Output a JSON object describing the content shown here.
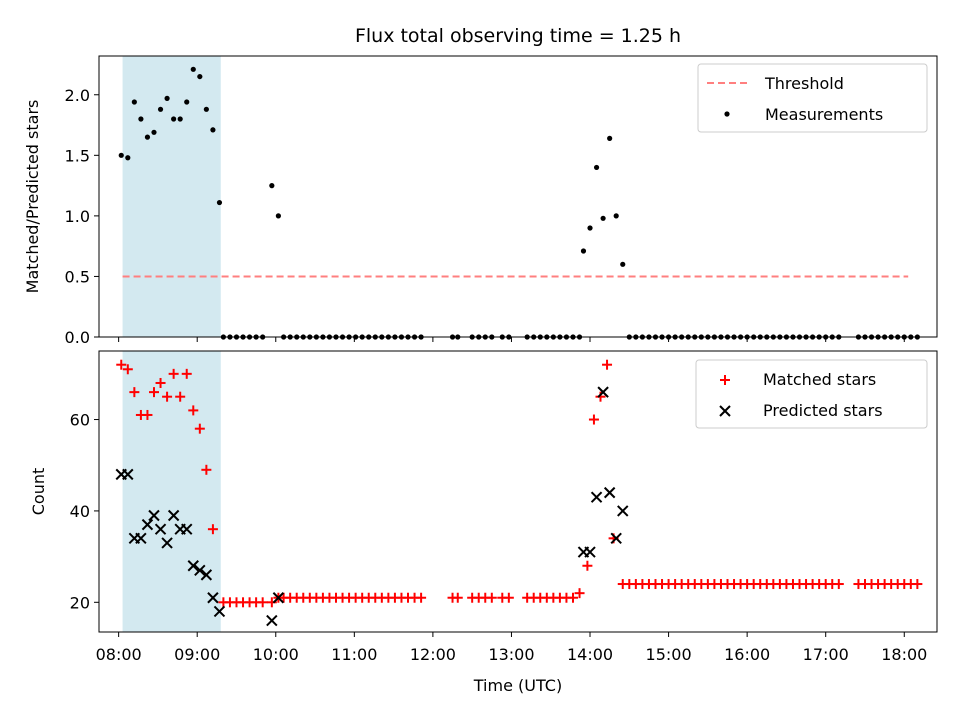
{
  "chart_data": [
    {
      "type": "scatter",
      "title": "Flux total observing time = 1.25 h",
      "ylabel": "Matched/Predicted stars",
      "xlabel": "",
      "ylim": [
        0,
        2.32
      ],
      "xlim": [
        "07:45",
        "18:25"
      ],
      "yticks": [
        0.0,
        0.5,
        1.0,
        1.5,
        2.0
      ],
      "ytick_labels": [
        "0.0",
        "0.5",
        "1.0",
        "1.5",
        "2.0"
      ],
      "threshold": {
        "name": "Threshold",
        "value": 0.5,
        "x_start": "08:03",
        "x_end": "18:03",
        "color": "#ff7f7f"
      },
      "shaded_region": {
        "x_start": "08:03",
        "x_end": "09:18",
        "color": "#d3e9f0"
      },
      "legend": {
        "location": "upper right",
        "entries": [
          "Threshold",
          "Measurements"
        ]
      },
      "series": [
        {
          "name": "Measurements",
          "color": "#000000",
          "points": [
            [
              "08:02",
              1.5
            ],
            [
              "08:07",
              1.48
            ],
            [
              "08:12",
              1.94
            ],
            [
              "08:17",
              1.8
            ],
            [
              "08:22",
              1.65
            ],
            [
              "08:27",
              1.69
            ],
            [
              "08:32",
              1.88
            ],
            [
              "08:37",
              1.97
            ],
            [
              "08:42",
              1.8
            ],
            [
              "08:47",
              1.8
            ],
            [
              "08:52",
              1.94
            ],
            [
              "08:57",
              2.21
            ],
            [
              "09:02",
              2.15
            ],
            [
              "09:07",
              1.88
            ],
            [
              "09:12",
              1.71
            ],
            [
              "09:17",
              1.11
            ],
            [
              "09:20",
              0
            ],
            [
              "09:25",
              0
            ],
            [
              "09:30",
              0
            ],
            [
              "09:35",
              0
            ],
            [
              "09:40",
              0
            ],
            [
              "09:45",
              0
            ],
            [
              "09:50",
              0
            ],
            [
              "09:57",
              1.25
            ],
            [
              "10:02",
              1.0
            ],
            [
              "10:06",
              0
            ],
            [
              "10:11",
              0
            ],
            [
              "10:16",
              0
            ],
            [
              "10:21",
              0
            ],
            [
              "10:26",
              0
            ],
            [
              "10:31",
              0
            ],
            [
              "10:36",
              0
            ],
            [
              "10:41",
              0
            ],
            [
              "10:46",
              0
            ],
            [
              "10:51",
              0
            ],
            [
              "10:56",
              0
            ],
            [
              "11:01",
              0
            ],
            [
              "11:06",
              0
            ],
            [
              "11:11",
              0
            ],
            [
              "11:16",
              0
            ],
            [
              "11:21",
              0
            ],
            [
              "11:26",
              0
            ],
            [
              "11:31",
              0
            ],
            [
              "11:36",
              0
            ],
            [
              "11:41",
              0
            ],
            [
              "11:46",
              0
            ],
            [
              "11:51",
              0
            ],
            [
              "12:15",
              0
            ],
            [
              "12:19",
              0
            ],
            [
              "12:30",
              0
            ],
            [
              "12:35",
              0
            ],
            [
              "12:40",
              0
            ],
            [
              "12:45",
              0
            ],
            [
              "12:53",
              0
            ],
            [
              "12:58",
              0
            ],
            [
              "13:12",
              0
            ],
            [
              "13:17",
              0
            ],
            [
              "13:22",
              0
            ],
            [
              "13:27",
              0
            ],
            [
              "13:32",
              0
            ],
            [
              "13:37",
              0
            ],
            [
              "13:42",
              0
            ],
            [
              "13:47",
              0
            ],
            [
              "13:52",
              0
            ],
            [
              "13:55",
              0.71
            ],
            [
              "14:00",
              0.9
            ],
            [
              "14:05",
              1.4
            ],
            [
              "14:10",
              0.98
            ],
            [
              "14:15",
              1.64
            ],
            [
              "14:20",
              1.0
            ],
            [
              "14:25",
              0.6
            ],
            [
              "14:30",
              0
            ],
            [
              "14:35",
              0
            ],
            [
              "14:40",
              0
            ],
            [
              "14:45",
              0
            ],
            [
              "14:50",
              0
            ],
            [
              "14:55",
              0
            ],
            [
              "15:00",
              0
            ],
            [
              "15:05",
              0
            ],
            [
              "15:10",
              0
            ],
            [
              "15:15",
              0
            ],
            [
              "15:20",
              0
            ],
            [
              "15:25",
              0
            ],
            [
              "15:30",
              0
            ],
            [
              "15:35",
              0
            ],
            [
              "15:40",
              0
            ],
            [
              "15:45",
              0
            ],
            [
              "15:50",
              0
            ],
            [
              "15:55",
              0
            ],
            [
              "16:00",
              0
            ],
            [
              "16:05",
              0
            ],
            [
              "16:10",
              0
            ],
            [
              "16:15",
              0
            ],
            [
              "16:20",
              0
            ],
            [
              "16:25",
              0
            ],
            [
              "16:30",
              0
            ],
            [
              "16:35",
              0
            ],
            [
              "16:40",
              0
            ],
            [
              "16:45",
              0
            ],
            [
              "16:50",
              0
            ],
            [
              "16:55",
              0
            ],
            [
              "17:00",
              0
            ],
            [
              "17:05",
              0
            ],
            [
              "17:10",
              0
            ],
            [
              "17:25",
              0
            ],
            [
              "17:30",
              0
            ],
            [
              "17:35",
              0
            ],
            [
              "17:40",
              0
            ],
            [
              "17:45",
              0
            ],
            [
              "17:50",
              0
            ],
            [
              "17:55",
              0
            ],
            [
              "18:00",
              0
            ],
            [
              "18:05",
              0
            ],
            [
              "18:10",
              0
            ]
          ]
        }
      ]
    },
    {
      "type": "scatter",
      "title": "",
      "xlabel": "Time (UTC)",
      "ylabel": "Count",
      "ylim": [
        13.5,
        75
      ],
      "xlim": [
        "07:45",
        "18:25"
      ],
      "yticks": [
        20,
        40,
        60
      ],
      "ytick_labels": [
        "20",
        "40",
        "60"
      ],
      "xticks": [
        "08:00",
        "09:00",
        "10:00",
        "11:00",
        "12:00",
        "13:00",
        "14:00",
        "15:00",
        "16:00",
        "17:00",
        "18:00"
      ],
      "xtick_labels": [
        "08:00",
        "09:00",
        "10:00",
        "11:00",
        "12:00",
        "13:00",
        "14:00",
        "15:00",
        "16:00",
        "17:00",
        "18:00"
      ],
      "shaded_region": {
        "x_start": "08:03",
        "x_end": "09:18",
        "color": "#d3e9f0"
      },
      "legend": {
        "location": "upper right",
        "entries": [
          "Matched stars",
          "Predicted stars"
        ]
      },
      "series": [
        {
          "name": "Matched stars",
          "marker": "+",
          "color": "#ff0000",
          "points": [
            [
              "08:02",
              72
            ],
            [
              "08:07",
              71
            ],
            [
              "08:12",
              66
            ],
            [
              "08:17",
              61
            ],
            [
              "08:22",
              61
            ],
            [
              "08:27",
              66
            ],
            [
              "08:32",
              68
            ],
            [
              "08:37",
              65
            ],
            [
              "08:42",
              70
            ],
            [
              "08:47",
              65
            ],
            [
              "08:52",
              70
            ],
            [
              "08:57",
              62
            ],
            [
              "09:02",
              58
            ],
            [
              "09:07",
              49
            ],
            [
              "09:12",
              36
            ],
            [
              "09:20",
              20
            ],
            [
              "09:25",
              20
            ],
            [
              "09:30",
              20
            ],
            [
              "09:35",
              20
            ],
            [
              "09:40",
              20
            ],
            [
              "09:45",
              20
            ],
            [
              "09:50",
              20
            ],
            [
              "09:57",
              20
            ],
            [
              "10:02",
              21
            ],
            [
              "10:06",
              21
            ],
            [
              "10:11",
              21
            ],
            [
              "10:16",
              21
            ],
            [
              "10:21",
              21
            ],
            [
              "10:26",
              21
            ],
            [
              "10:31",
              21
            ],
            [
              "10:36",
              21
            ],
            [
              "10:41",
              21
            ],
            [
              "10:46",
              21
            ],
            [
              "10:51",
              21
            ],
            [
              "10:56",
              21
            ],
            [
              "11:01",
              21
            ],
            [
              "11:06",
              21
            ],
            [
              "11:11",
              21
            ],
            [
              "11:16",
              21
            ],
            [
              "11:21",
              21
            ],
            [
              "11:26",
              21
            ],
            [
              "11:31",
              21
            ],
            [
              "11:36",
              21
            ],
            [
              "11:41",
              21
            ],
            [
              "11:46",
              21
            ],
            [
              "11:51",
              21
            ],
            [
              "12:15",
              21
            ],
            [
              "12:19",
              21
            ],
            [
              "12:30",
              21
            ],
            [
              "12:35",
              21
            ],
            [
              "12:40",
              21
            ],
            [
              "12:45",
              21
            ],
            [
              "12:53",
              21
            ],
            [
              "12:58",
              21
            ],
            [
              "13:12",
              21
            ],
            [
              "13:17",
              21
            ],
            [
              "13:22",
              21
            ],
            [
              "13:27",
              21
            ],
            [
              "13:32",
              21
            ],
            [
              "13:37",
              21
            ],
            [
              "13:42",
              21
            ],
            [
              "13:47",
              21
            ],
            [
              "13:52",
              22
            ],
            [
              "13:58",
              28
            ],
            [
              "14:03",
              60
            ],
            [
              "14:08",
              65
            ],
            [
              "14:13",
              72
            ],
            [
              "14:18",
              34
            ],
            [
              "14:25",
              24
            ],
            [
              "14:30",
              24
            ],
            [
              "14:35",
              24
            ],
            [
              "14:40",
              24
            ],
            [
              "14:45",
              24
            ],
            [
              "14:50",
              24
            ],
            [
              "14:55",
              24
            ],
            [
              "15:00",
              24
            ],
            [
              "15:05",
              24
            ],
            [
              "15:10",
              24
            ],
            [
              "15:15",
              24
            ],
            [
              "15:20",
              24
            ],
            [
              "15:25",
              24
            ],
            [
              "15:30",
              24
            ],
            [
              "15:35",
              24
            ],
            [
              "15:40",
              24
            ],
            [
              "15:45",
              24
            ],
            [
              "15:50",
              24
            ],
            [
              "15:55",
              24
            ],
            [
              "16:00",
              24
            ],
            [
              "16:05",
              24
            ],
            [
              "16:10",
              24
            ],
            [
              "16:15",
              24
            ],
            [
              "16:20",
              24
            ],
            [
              "16:25",
              24
            ],
            [
              "16:30",
              24
            ],
            [
              "16:35",
              24
            ],
            [
              "16:40",
              24
            ],
            [
              "16:45",
              24
            ],
            [
              "16:50",
              24
            ],
            [
              "16:55",
              24
            ],
            [
              "17:00",
              24
            ],
            [
              "17:05",
              24
            ],
            [
              "17:10",
              24
            ],
            [
              "17:25",
              24
            ],
            [
              "17:30",
              24
            ],
            [
              "17:35",
              24
            ],
            [
              "17:40",
              24
            ],
            [
              "17:45",
              24
            ],
            [
              "17:50",
              24
            ],
            [
              "17:55",
              24
            ],
            [
              "18:00",
              24
            ],
            [
              "18:05",
              24
            ],
            [
              "18:10",
              24
            ]
          ]
        },
        {
          "name": "Predicted stars",
          "marker": "x",
          "color": "#000000",
          "points": [
            [
              "08:02",
              48
            ],
            [
              "08:07",
              48
            ],
            [
              "08:12",
              34
            ],
            [
              "08:17",
              34
            ],
            [
              "08:22",
              37
            ],
            [
              "08:27",
              39
            ],
            [
              "08:32",
              36
            ],
            [
              "08:37",
              33
            ],
            [
              "08:42",
              39
            ],
            [
              "08:47",
              36
            ],
            [
              "08:52",
              36
            ],
            [
              "08:57",
              28
            ],
            [
              "09:02",
              27
            ],
            [
              "09:07",
              26
            ],
            [
              "09:12",
              21
            ],
            [
              "09:17",
              18
            ],
            [
              "09:57",
              16
            ],
            [
              "10:02",
              21
            ],
            [
              "13:55",
              31
            ],
            [
              "14:00",
              31
            ],
            [
              "14:05",
              43
            ],
            [
              "14:10",
              66
            ],
            [
              "14:15",
              44
            ],
            [
              "14:20",
              34
            ],
            [
              "14:25",
              40
            ]
          ]
        }
      ]
    }
  ]
}
